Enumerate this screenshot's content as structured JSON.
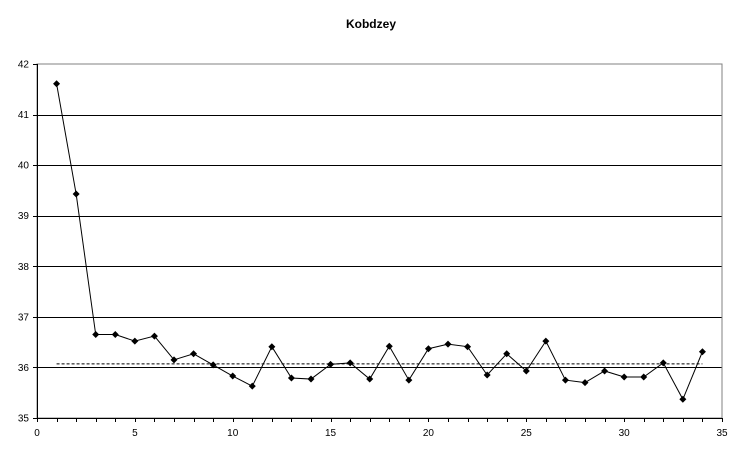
{
  "chart_data": {
    "type": "line",
    "title": "Kobdzey",
    "xlabel": "",
    "ylabel": "",
    "xlim": [
      0,
      35
    ],
    "ylim": [
      35,
      42
    ],
    "x_ticks": [
      0,
      5,
      10,
      15,
      20,
      25,
      30,
      35
    ],
    "y_ticks": [
      35,
      36,
      37,
      38,
      39,
      40,
      41,
      42
    ],
    "grid": "horizontal",
    "legend": "none",
    "reference_line": {
      "style": "dashed",
      "y": 36.07
    },
    "series": [
      {
        "marker": "diamond",
        "color": "#000000",
        "x": [
          1,
          2,
          3,
          4,
          5,
          6,
          7,
          8,
          9,
          10,
          11,
          12,
          13,
          14,
          15,
          16,
          17,
          18,
          19,
          20,
          21,
          22,
          23,
          24,
          25,
          26,
          27,
          28,
          29,
          30,
          31,
          32,
          33,
          34
        ],
        "values": [
          41.61,
          39.43,
          36.65,
          36.65,
          36.52,
          36.62,
          36.15,
          36.27,
          36.05,
          35.83,
          35.63,
          36.41,
          35.79,
          35.77,
          36.06,
          36.09,
          35.77,
          36.42,
          35.75,
          36.37,
          36.46,
          36.41,
          35.85,
          36.27,
          35.93,
          36.52,
          35.75,
          35.7,
          35.93,
          35.81,
          35.81,
          36.09,
          35.37,
          36.31
        ]
      }
    ]
  }
}
